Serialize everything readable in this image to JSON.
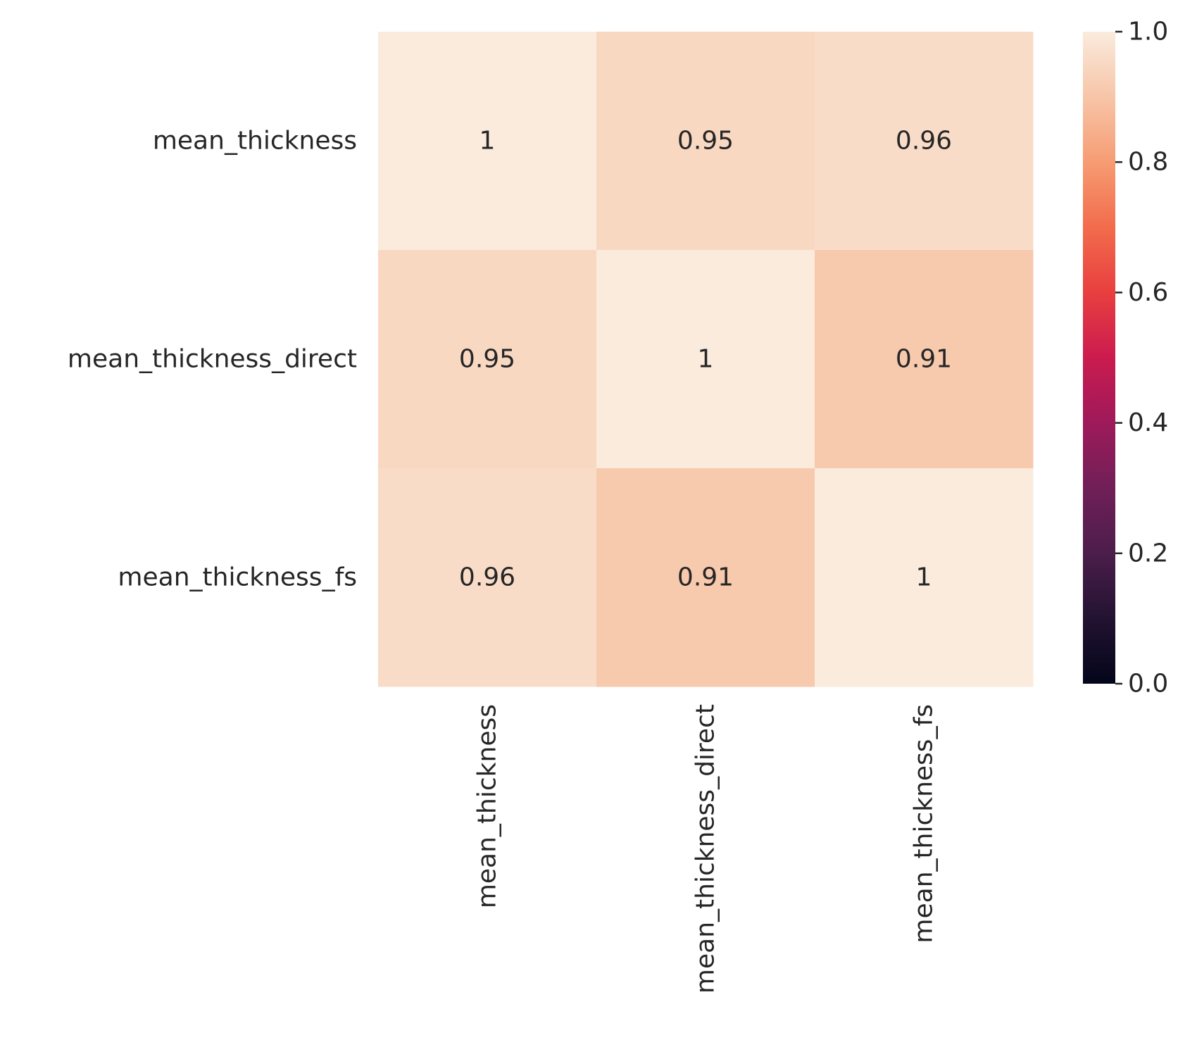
{
  "chart_data": {
    "type": "heatmap",
    "rows": [
      "mean_thickness",
      "mean_thickness_direct",
      "mean_thickness_fs"
    ],
    "columns": [
      "mean_thickness",
      "mean_thickness_direct",
      "mean_thickness_fs"
    ],
    "values": [
      [
        1.0,
        0.95,
        0.96
      ],
      [
        0.95,
        1.0,
        0.91
      ],
      [
        0.96,
        0.91,
        1.0
      ]
    ],
    "annotations": [
      [
        "1",
        "0.95",
        "0.96"
      ],
      [
        "0.95",
        "1",
        "0.91"
      ],
      [
        "0.96",
        "0.91",
        "1"
      ]
    ],
    "colorbar": {
      "range": [
        0.0,
        1.0
      ],
      "ticks": [
        0.0,
        0.2,
        0.4,
        0.6,
        0.8,
        1.0
      ],
      "tick_labels": [
        "0.0",
        "0.2",
        "0.4",
        "0.6",
        "0.8",
        "1.0"
      ],
      "colormap": "rocket",
      "color_stops": [
        {
          "v": 0.0,
          "c": "#03051a"
        },
        {
          "v": 0.1,
          "c": "#221331"
        },
        {
          "v": 0.2,
          "c": "#4c1d4b"
        },
        {
          "v": 0.3,
          "c": "#701f57"
        },
        {
          "v": 0.4,
          "c": "#9e1a5a"
        },
        {
          "v": 0.5,
          "c": "#cb1b4f"
        },
        {
          "v": 0.6,
          "c": "#e83f3f"
        },
        {
          "v": 0.7,
          "c": "#f26c4c"
        },
        {
          "v": 0.8,
          "c": "#f69c73"
        },
        {
          "v": 0.9,
          "c": "#f7c5a8"
        },
        {
          "v": 1.0,
          "c": "#faebdd"
        }
      ]
    },
    "title": "",
    "xlabel": "",
    "ylabel": ""
  }
}
